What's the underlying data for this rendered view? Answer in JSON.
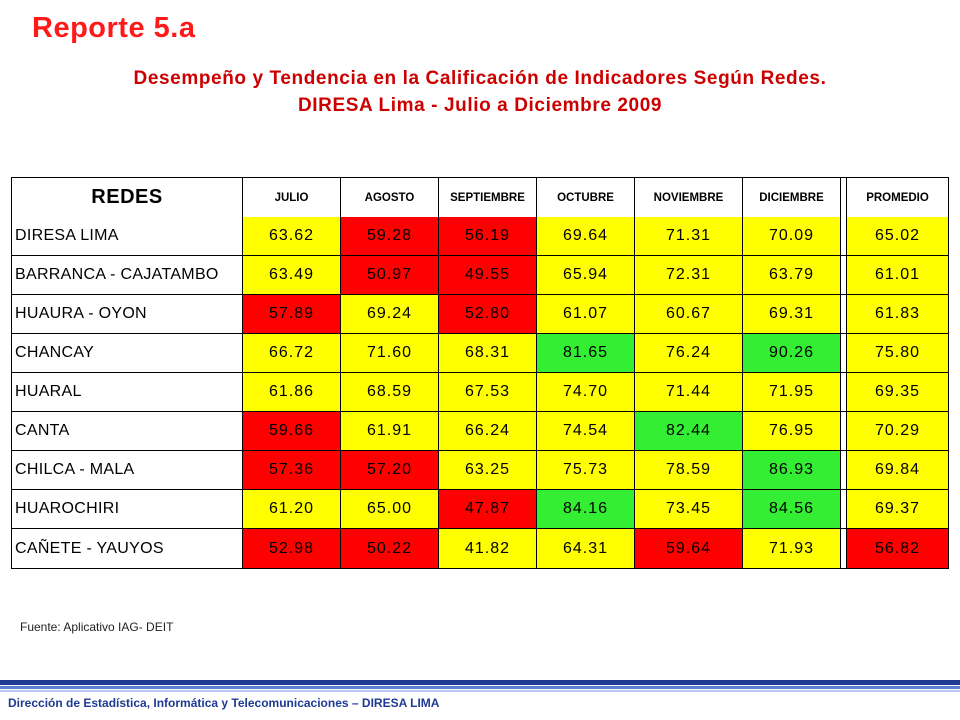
{
  "report_title": "Reporte 5.a",
  "subtitle_line1": "Desempeño y Tendencia en la Calificación de Indicadores Según Redes.",
  "subtitle_line2": "DIRESA Lima - Julio a Diciembre 2009",
  "table": {
    "headers": [
      "REDES",
      "JULIO",
      "AGOSTO",
      "SEPTIEMBRE",
      "OCTUBRE",
      "NOVIEMBRE",
      "DICIEMBRE",
      "PROMEDIO"
    ],
    "rows": [
      {
        "name": "DIRESA LIMA",
        "values": [
          "63.62",
          "59.28",
          "56.19",
          "69.64",
          "71.31",
          "70.09",
          "65.02"
        ],
        "colors": [
          "yellow",
          "red",
          "red",
          "yellow",
          "yellow",
          "yellow",
          "yellow"
        ]
      },
      {
        "name": "BARRANCA - CAJATAMBO",
        "values": [
          "63.49",
          "50.97",
          "49.55",
          "65.94",
          "72.31",
          "63.79",
          "61.01"
        ],
        "colors": [
          "yellow",
          "red",
          "red",
          "yellow",
          "yellow",
          "yellow",
          "yellow"
        ]
      },
      {
        "name": "HUAURA - OYON",
        "values": [
          "57.89",
          "69.24",
          "52.80",
          "61.07",
          "60.67",
          "69.31",
          "61.83"
        ],
        "colors": [
          "red",
          "yellow",
          "red",
          "yellow",
          "yellow",
          "yellow",
          "yellow"
        ]
      },
      {
        "name": "CHANCAY",
        "values": [
          "66.72",
          "71.60",
          "68.31",
          "81.65",
          "76.24",
          "90.26",
          "75.80"
        ],
        "colors": [
          "yellow",
          "yellow",
          "yellow",
          "green",
          "yellow",
          "green",
          "yellow"
        ]
      },
      {
        "name": "HUARAL",
        "values": [
          "61.86",
          "68.59",
          "67.53",
          "74.70",
          "71.44",
          "71.95",
          "69.35"
        ],
        "colors": [
          "yellow",
          "yellow",
          "yellow",
          "yellow",
          "yellow",
          "yellow",
          "yellow"
        ]
      },
      {
        "name": "CANTA",
        "values": [
          "59.66",
          "61.91",
          "66.24",
          "74.54",
          "82.44",
          "76.95",
          "70.29"
        ],
        "colors": [
          "red",
          "yellow",
          "yellow",
          "yellow",
          "green",
          "yellow",
          "yellow"
        ]
      },
      {
        "name": "CHILCA - MALA",
        "values": [
          "57.36",
          "57.20",
          "63.25",
          "75.73",
          "78.59",
          "86.93",
          "69.84"
        ],
        "colors": [
          "red",
          "red",
          "yellow",
          "yellow",
          "yellow",
          "green",
          "yellow"
        ]
      },
      {
        "name": "HUAROCHIRI",
        "values": [
          "61.20",
          "65.00",
          "47.87",
          "84.16",
          "73.45",
          "84.56",
          "69.37"
        ],
        "colors": [
          "yellow",
          "yellow",
          "red",
          "green",
          "yellow",
          "green",
          "yellow"
        ]
      },
      {
        "name": "CAÑETE - YAUYOS",
        "values": [
          "52.98",
          "50.22",
          "41.82",
          "64.31",
          "59.64",
          "71.93",
          "56.82"
        ],
        "colors": [
          "red",
          "red",
          "yellow",
          "yellow",
          "red",
          "yellow",
          "red"
        ]
      }
    ]
  },
  "source_note": "Fuente: Aplicativo IAG- DEIT",
  "footer": "Dirección de Estadística,  Informática y Telecomunicaciones – DIRESA LIMA",
  "colors": {
    "title_red": "#ff1a1a",
    "subtitle_red": "#cc0000",
    "cell_red": "#ff0000",
    "cell_yellow": "#ffff00",
    "cell_green": "#33ee33",
    "footer_blue": "#1f3a93"
  }
}
